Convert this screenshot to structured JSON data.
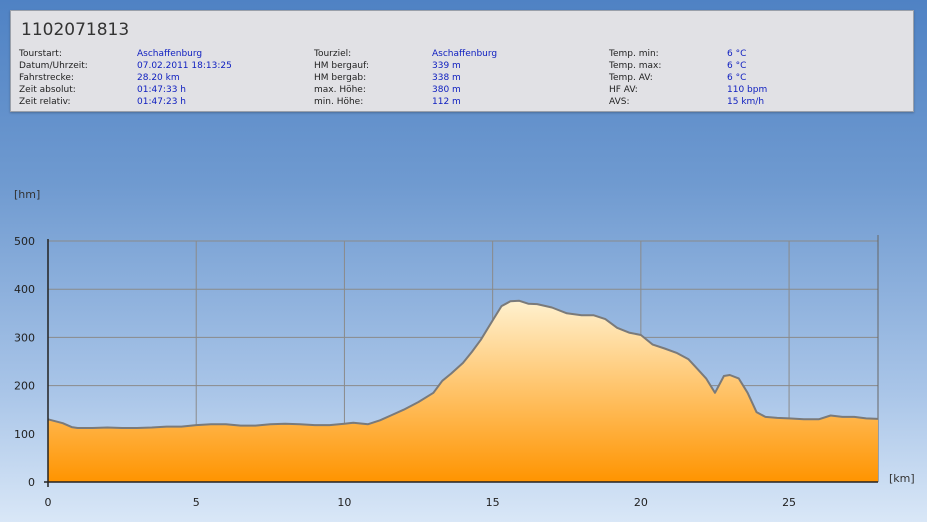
{
  "header": {
    "title": "1102071813"
  },
  "info": [
    [
      {
        "label": "Tourstart:",
        "value": "Aschaffenburg"
      },
      {
        "label": "Datum/Uhrzeit:",
        "value": "07.02.2011 18:13:25"
      },
      {
        "label": "Fahrstrecke:",
        "value": "28.20 km"
      },
      {
        "label": "Zeit absolut:",
        "value": "01:47:33 h"
      },
      {
        "label": "Zeit relativ:",
        "value": "01:47:23 h"
      }
    ],
    [
      {
        "label": "Tourziel:",
        "value": "Aschaffenburg"
      },
      {
        "label": "HM bergauf:",
        "value": "339 m"
      },
      {
        "label": "HM bergab:",
        "value": "338 m"
      },
      {
        "label": "max. Höhe:",
        "value": "380 m"
      },
      {
        "label": "min. Höhe:",
        "value": "112 m"
      }
    ],
    [
      {
        "label": "Temp. min:",
        "value": "6 °C"
      },
      {
        "label": "Temp. max:",
        "value": "6 °C"
      },
      {
        "label": "Temp. AV:",
        "value": "6 °C"
      },
      {
        "label": "HF AV:",
        "value": "110 bpm"
      },
      {
        "label": "AVS:",
        "value": "15 km/h"
      }
    ]
  ],
  "chart_data": {
    "type": "area",
    "xlabel": "[km]",
    "ylabel": "[hm]",
    "xlim": [
      0,
      28
    ],
    "ylim": [
      0,
      500
    ],
    "xticks": [
      0,
      5,
      10,
      15,
      20,
      25
    ],
    "yticks": [
      0,
      100,
      200,
      300,
      400,
      500
    ],
    "grid": true,
    "colors": {
      "fill_top": "#fff1cf",
      "fill_bottom": "#ff9400",
      "line": "#7a7a7a",
      "grid": "#8a8a8a"
    },
    "x": [
      0,
      0.5,
      0.8,
      1.0,
      1.5,
      2.0,
      2.5,
      3.0,
      3.5,
      4.0,
      4.5,
      5.0,
      5.5,
      6.0,
      6.5,
      7.0,
      7.5,
      8.0,
      8.5,
      9.0,
      9.5,
      10.0,
      10.3,
      10.8,
      11.2,
      11.6,
      12.0,
      12.5,
      13.0,
      13.3,
      13.6,
      14.0,
      14.3,
      14.6,
      15.0,
      15.3,
      15.6,
      15.9,
      16.2,
      16.5,
      17.0,
      17.5,
      18.0,
      18.4,
      18.8,
      19.2,
      19.6,
      20.0,
      20.4,
      20.8,
      21.2,
      21.6,
      21.9,
      22.2,
      22.5,
      22.8,
      23.0,
      23.3,
      23.6,
      23.9,
      24.2,
      24.6,
      25.0,
      25.5,
      26.0,
      26.4,
      26.8,
      27.2,
      27.6,
      28.0
    ],
    "y": [
      130,
      122,
      114,
      112,
      112,
      113,
      112,
      112,
      113,
      115,
      115,
      118,
      120,
      120,
      117,
      117,
      120,
      121,
      120,
      118,
      118,
      121,
      123,
      120,
      128,
      139,
      150,
      166,
      185,
      210,
      225,
      247,
      270,
      295,
      335,
      365,
      375,
      376,
      370,
      369,
      362,
      350,
      346,
      346,
      338,
      320,
      310,
      305,
      285,
      277,
      268,
      255,
      235,
      215,
      185,
      220,
      222,
      215,
      185,
      145,
      135,
      133,
      132,
      130,
      130,
      138,
      135,
      135,
      132,
      131
    ]
  }
}
